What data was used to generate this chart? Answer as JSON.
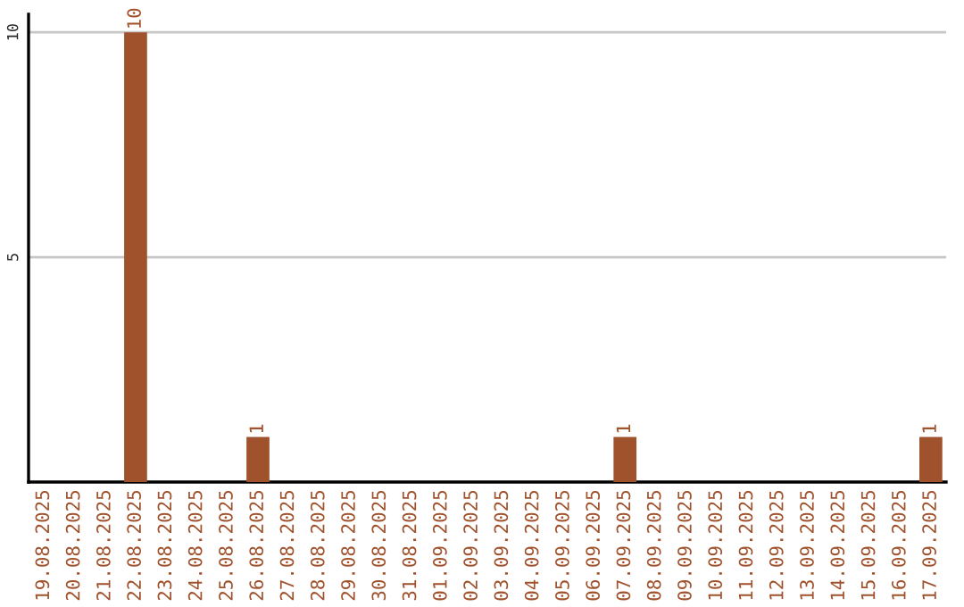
{
  "chart_data": {
    "type": "bar",
    "categories": [
      "19.08.2025",
      "20.08.2025",
      "21.08.2025",
      "22.08.2025",
      "23.08.2025",
      "24.08.2025",
      "25.08.2025",
      "26.08.2025",
      "27.08.2025",
      "28.08.2025",
      "29.08.2025",
      "30.08.2025",
      "31.08.2025",
      "01.09.2025",
      "02.09.2025",
      "03.09.2025",
      "04.09.2025",
      "05.09.2025",
      "06.09.2025",
      "07.09.2025",
      "08.09.2025",
      "09.09.2025",
      "10.09.2025",
      "11.09.2025",
      "12.09.2025",
      "13.09.2025",
      "14.09.2025",
      "15.09.2025",
      "16.09.2025",
      "17.09.2025"
    ],
    "values": [
      0,
      0,
      0,
      10,
      0,
      0,
      0,
      1,
      0,
      0,
      0,
      0,
      0,
      0,
      0,
      0,
      0,
      0,
      0,
      1,
      0,
      0,
      0,
      0,
      0,
      0,
      0,
      0,
      0,
      1
    ],
    "value_labels": [
      null,
      null,
      null,
      "10",
      null,
      null,
      null,
      "1",
      null,
      null,
      null,
      null,
      null,
      null,
      null,
      null,
      null,
      null,
      null,
      "1",
      null,
      null,
      null,
      null,
      null,
      null,
      null,
      null,
      null,
      "1"
    ],
    "color": "#a0522d",
    "ylim": [
      0,
      10.4
    ],
    "yticks": [
      5,
      10
    ],
    "grid": "y"
  }
}
